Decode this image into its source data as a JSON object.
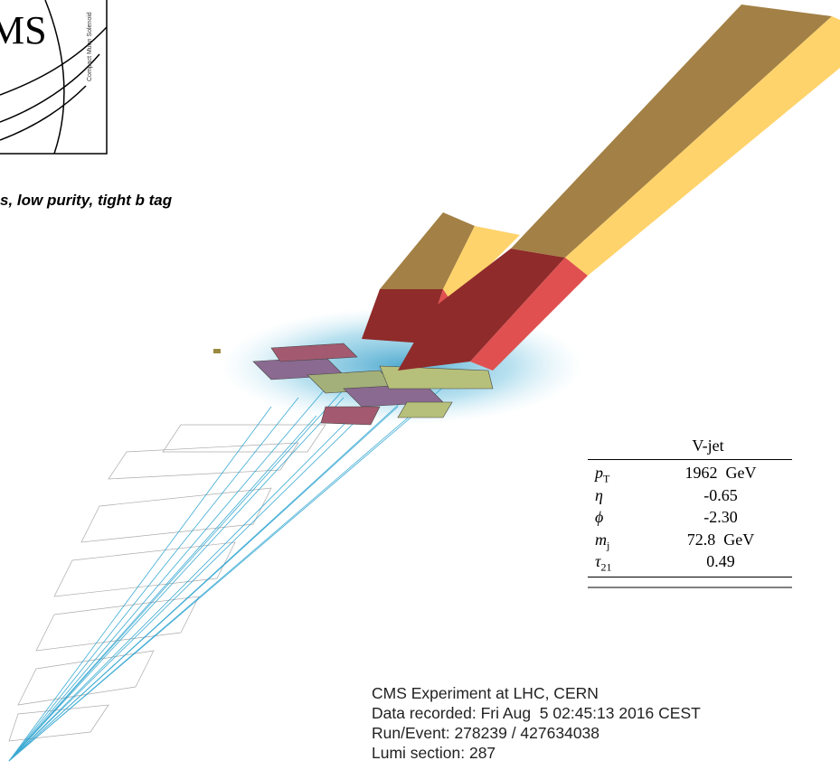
{
  "logo": {
    "text": "MS",
    "subtitle": "Compact Muon Solenoid"
  },
  "caption": "s, low purity, tight b tag",
  "table": {
    "header": "V-jet",
    "rows": [
      {
        "symbol": "p",
        "sub": "T",
        "value": "1962  GeV"
      },
      {
        "symbol": "η",
        "value": "-0.65"
      },
      {
        "symbol": "ϕ",
        "value": "-2.30"
      },
      {
        "symbol": "m",
        "sub": "j",
        "value": "72.8  GeV"
      },
      {
        "symbol": "τ",
        "sub": "21",
        "value": "0.49"
      }
    ]
  },
  "footer": [
    "CMS Experiment at LHC, CERN",
    "Data recorded: Fri Aug  5 02:45:13 2016 CEST",
    "Run/Event: 278239 / 427634038",
    "Lumi section: 287"
  ]
}
